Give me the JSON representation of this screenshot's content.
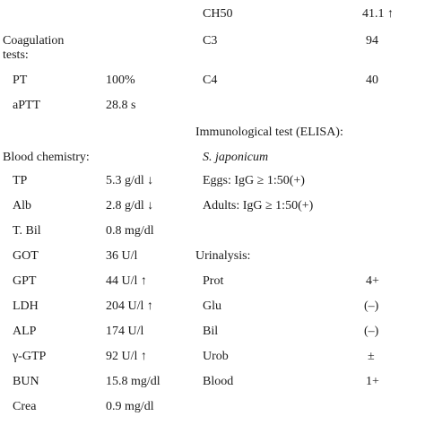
{
  "left": {
    "coag_heading_line1": "Coagulation",
    "coag_heading_line2": "tests:",
    "coag_rows": [
      {
        "name": "PT",
        "value": "100%"
      },
      {
        "name": "aPTT",
        "value": "28.8 s"
      }
    ],
    "chem_heading": "Blood chemistry:",
    "chem_rows": [
      {
        "name": "TP",
        "value": "5.3 g/dl ↓"
      },
      {
        "name": "Alb",
        "value": "2.8 g/dl ↓"
      },
      {
        "name": "T. Bil",
        "value": "0.8 mg/dl"
      },
      {
        "name": "GOT",
        "value": "36 U/l"
      },
      {
        "name": "GPT",
        "value": "44 U/l ↑"
      },
      {
        "name": "LDH",
        "value": "204 U/l ↑"
      },
      {
        "name": "ALP",
        "value": "174 U/l"
      },
      {
        "name": "γ-GTP",
        "value": "92 U/l ↑"
      },
      {
        "name": "BUN",
        "value": "15.8 mg/dl"
      },
      {
        "name": "Crea",
        "value": "0.9 mg/dl"
      }
    ]
  },
  "right": {
    "complement_rows": [
      {
        "name": "CH50",
        "value": "41.1 ↑"
      },
      {
        "name": "C3",
        "value": "94"
      },
      {
        "name": "C4",
        "value": "40"
      }
    ],
    "immuno_heading": "Immunological test (ELISA):",
    "immuno_species": "S. japonicum",
    "immuno_rows": [
      {
        "label": "Eggs: IgG ≥ 1:50(+)"
      },
      {
        "label": "Adults: IgG ≥ 1:50(+)"
      }
    ],
    "urin_heading": "Urinalysis:",
    "urin_rows": [
      {
        "name": "Prot",
        "value": "4+"
      },
      {
        "name": "Glu",
        "value": "(–)"
      },
      {
        "name": "Bil",
        "value": "(–)"
      },
      {
        "name": "Urob",
        "value": "±"
      },
      {
        "name": "Blood",
        "value": "1+"
      }
    ]
  }
}
